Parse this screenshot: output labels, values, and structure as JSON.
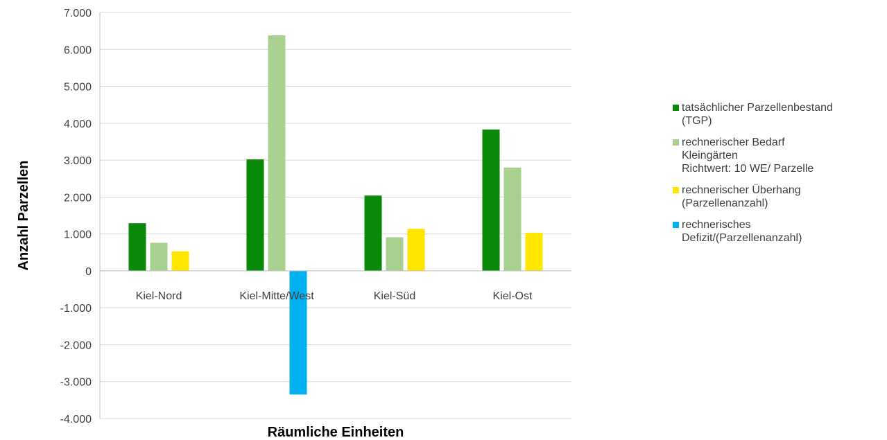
{
  "chart_data": {
    "type": "bar",
    "xlabel": "Räumliche Einheiten",
    "ylabel": "Anzahl Parzellen",
    "ylim": [
      -4000,
      7000
    ],
    "yticks": [
      -4000,
      -3000,
      -2000,
      -1000,
      0,
      1000,
      2000,
      3000,
      4000,
      5000,
      6000,
      7000
    ],
    "ytick_labels": [
      "-4.000",
      "-3.000",
      "-2.000",
      "-1.000",
      "0",
      "1.000",
      "2.000",
      "3.000",
      "4.000",
      "5.000",
      "6.000",
      "7.000"
    ],
    "grid": "horizontal",
    "legend_position": "right",
    "categories": [
      "Kiel-Nord",
      "Kiel-Mitte/West",
      "Kiel-Süd",
      "Kiel-Ost"
    ],
    "series": [
      {
        "name": "tatsächlicher Parzellenbestand\n(TGP)",
        "color": "#088a08",
        "values": [
          1290,
          3020,
          2040,
          3830
        ]
      },
      {
        "name": "rechnerischer Bedarf\nKleingärten\nRichtwert: 10 WE/ Parzelle",
        "color": "#a9d08e",
        "values": [
          760,
          6380,
          910,
          2800
        ]
      },
      {
        "name": "rechnerischer Überhang\n(Parzellenanzahl)",
        "color": "#ffe600",
        "values": [
          530,
          null,
          1140,
          1030
        ]
      },
      {
        "name": "rechnerisches\nDefizit/(Parzellenanzahl)",
        "color": "#00b0f0",
        "values": [
          null,
          -3350,
          null,
          null
        ]
      }
    ]
  }
}
